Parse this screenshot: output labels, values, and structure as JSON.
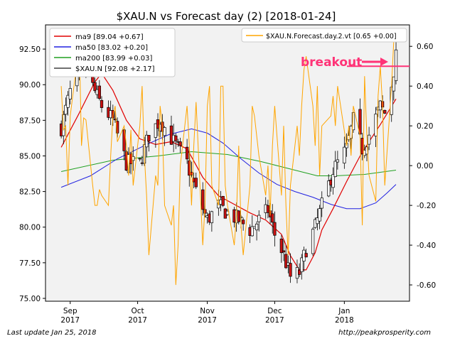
{
  "chart_data": {
    "type": "candlestick",
    "title": "$XAU.N vs Forecast day (2)  [2018-01-24]",
    "left_axis": {
      "ylim": [
        74.8,
        94.2
      ],
      "ticks": [
        75.0,
        77.5,
        80.0,
        82.5,
        85.0,
        87.5,
        90.0,
        92.5
      ],
      "tick_labels": [
        "75.00",
        "77.50",
        "80.00",
        "82.50",
        "85.00",
        "87.50",
        "90.00",
        "92.50"
      ]
    },
    "right_axis": {
      "ylim": [
        -0.682,
        0.708
      ],
      "ticks": [
        -0.6,
        -0.4,
        -0.2,
        0.0,
        0.2,
        0.4,
        0.6
      ],
      "tick_labels": [
        "-0.60",
        "-0.40",
        "-0.20",
        "0.00",
        "0.20",
        "0.40",
        "0.60"
      ]
    },
    "x_axis": {
      "start": "2017-08-21",
      "end": "2018-01-30",
      "ticks": [
        {
          "date": "2017-09-01",
          "month": "Sep",
          "year": "2017"
        },
        {
          "date": "2017-10-01",
          "month": "Oct",
          "year": "2017"
        },
        {
          "date": "2017-11-01",
          "month": "Nov",
          "year": "2017"
        },
        {
          "date": "2017-12-01",
          "month": "Dec",
          "year": "2017"
        },
        {
          "date": "2018-01-01",
          "month": "Jan",
          "year": "2018"
        }
      ]
    },
    "legend_left": [
      {
        "label": "ma9 [89.04 +0.67]",
        "color": "#e00000"
      },
      {
        "label": "ma50 [83.02 +0.20]",
        "color": "#2020e0"
      },
      {
        "label": "ma200 [83.99 +0.03]",
        "color": "#20a020"
      },
      {
        "label": "$XAU.N [92.08 +2.17]",
        "color": "#404040"
      }
    ],
    "legend_right": [
      {
        "label": "$XAU.N.Forecast.day.2.vt [0.65 +0.00]",
        "color": "#ffa500"
      }
    ],
    "annotation": {
      "text": "breakout",
      "color": "#ff3377",
      "level": 0.5
    },
    "ohlc_anchors": [
      {
        "date": "2017-08-28",
        "close": 87.0
      },
      {
        "date": "2017-09-01",
        "close": 89.5
      },
      {
        "date": "2017-09-08",
        "close": 91.0
      },
      {
        "date": "2017-09-12",
        "close": 89.5
      },
      {
        "date": "2017-09-15",
        "close": 88.5
      },
      {
        "date": "2017-09-20",
        "close": 87.5
      },
      {
        "date": "2017-09-26",
        "close": 84.5
      },
      {
        "date": "2017-10-02",
        "close": 84.5
      },
      {
        "date": "2017-10-06",
        "close": 86.5
      },
      {
        "date": "2017-10-11",
        "close": 87.5
      },
      {
        "date": "2017-10-17",
        "close": 86.0
      },
      {
        "date": "2017-10-23",
        "close": 84.5
      },
      {
        "date": "2017-10-27",
        "close": 82.5
      },
      {
        "date": "2017-11-01",
        "close": 80.5
      },
      {
        "date": "2017-11-06",
        "close": 81.5
      },
      {
        "date": "2017-11-10",
        "close": 81.0
      },
      {
        "date": "2017-11-15",
        "close": 80.5
      },
      {
        "date": "2017-11-20",
        "close": 79.8
      },
      {
        "date": "2017-11-24",
        "close": 80.5
      },
      {
        "date": "2017-11-28",
        "close": 81.2
      },
      {
        "date": "2017-12-01",
        "close": 79.5
      },
      {
        "date": "2017-12-05",
        "close": 78.0
      },
      {
        "date": "2017-12-08",
        "close": 76.5
      },
      {
        "date": "2017-12-12",
        "close": 76.8
      },
      {
        "date": "2017-12-15",
        "close": 78.5
      },
      {
        "date": "2017-12-19",
        "close": 80.0
      },
      {
        "date": "2017-12-22",
        "close": 81.5
      },
      {
        "date": "2017-12-27",
        "close": 84.0
      },
      {
        "date": "2018-01-02",
        "close": 85.5
      },
      {
        "date": "2018-01-05",
        "close": 87.5
      },
      {
        "date": "2018-01-09",
        "close": 85.5
      },
      {
        "date": "2018-01-12",
        "close": 86.5
      },
      {
        "date": "2018-01-17",
        "close": 88.5
      },
      {
        "date": "2018-01-19",
        "close": 88.0
      },
      {
        "date": "2018-01-22",
        "close": 90.0
      },
      {
        "date": "2018-01-24",
        "close": 92.0
      }
    ],
    "ma9": [
      [
        "2017-08-28",
        85.6
      ],
      [
        "2017-09-05",
        88.0
      ],
      [
        "2017-09-12",
        90.2
      ],
      [
        "2017-09-15",
        90.8
      ],
      [
        "2017-09-20",
        89.6
      ],
      [
        "2017-09-26",
        87.5
      ],
      [
        "2017-10-02",
        86.2
      ],
      [
        "2017-10-09",
        85.8
      ],
      [
        "2017-10-16",
        86.0
      ],
      [
        "2017-10-23",
        85.5
      ],
      [
        "2017-10-30",
        83.5
      ],
      [
        "2017-11-06",
        82.2
      ],
      [
        "2017-11-13",
        81.6
      ],
      [
        "2017-11-20",
        81.0
      ],
      [
        "2017-11-27",
        80.5
      ],
      [
        "2017-12-04",
        79.5
      ],
      [
        "2017-12-08",
        78.0
      ],
      [
        "2017-12-12",
        77.0
      ],
      [
        "2017-12-15",
        77.0
      ],
      [
        "2017-12-19",
        78.2
      ],
      [
        "2017-12-22",
        79.8
      ],
      [
        "2017-12-27",
        81.3
      ],
      [
        "2018-01-02",
        83.2
      ],
      [
        "2018-01-08",
        85.0
      ],
      [
        "2018-01-12",
        86.0
      ],
      [
        "2018-01-17",
        87.2
      ],
      [
        "2018-01-24",
        89.0
      ]
    ],
    "ma50": [
      [
        "2017-08-28",
        82.8
      ],
      [
        "2017-09-10",
        83.6
      ],
      [
        "2017-09-22",
        84.8
      ],
      [
        "2017-10-05",
        85.8
      ],
      [
        "2017-10-15",
        86.5
      ],
      [
        "2017-10-25",
        86.9
      ],
      [
        "2017-11-01",
        86.6
      ],
      [
        "2017-11-08",
        85.9
      ],
      [
        "2017-11-16",
        84.8
      ],
      [
        "2017-11-24",
        83.8
      ],
      [
        "2017-12-02",
        83.0
      ],
      [
        "2017-12-10",
        82.5
      ],
      [
        "2017-12-18",
        82.1
      ],
      [
        "2017-12-26",
        81.6
      ],
      [
        "2018-01-02",
        81.3
      ],
      [
        "2018-01-08",
        81.3
      ],
      [
        "2018-01-15",
        81.7
      ],
      [
        "2018-01-20",
        82.4
      ],
      [
        "2018-01-24",
        83.0
      ]
    ],
    "ma200": [
      [
        "2017-08-28",
        83.9
      ],
      [
        "2017-09-20",
        84.7
      ],
      [
        "2017-10-10",
        85.0
      ],
      [
        "2017-10-25",
        85.3
      ],
      [
        "2017-11-10",
        85.1
      ],
      [
        "2017-11-25",
        84.6
      ],
      [
        "2017-12-10",
        84.0
      ],
      [
        "2017-12-20",
        83.6
      ],
      [
        "2017-12-28",
        83.6
      ],
      [
        "2018-01-10",
        83.7
      ],
      [
        "2018-01-24",
        84.0
      ]
    ],
    "forecast": [
      [
        "2017-08-28",
        0.4
      ],
      [
        "2017-08-29",
        0.18
      ],
      [
        "2017-08-30",
        0.2
      ],
      [
        "2017-08-31",
        -0.1
      ],
      [
        "2017-09-01",
        0.25
      ],
      [
        "2017-09-04",
        0.52
      ],
      [
        "2017-09-05",
        0.65
      ],
      [
        "2017-09-06",
        0.1
      ],
      [
        "2017-09-07",
        0.24
      ],
      [
        "2017-09-08",
        0.23
      ],
      [
        "2017-09-11",
        -0.1
      ],
      [
        "2017-09-12",
        -0.2
      ],
      [
        "2017-09-13",
        -0.2
      ],
      [
        "2017-09-14",
        -0.12
      ],
      [
        "2017-09-15",
        -0.15
      ],
      [
        "2017-09-18",
        -0.2
      ],
      [
        "2017-09-19",
        0.05
      ],
      [
        "2017-09-20",
        0.25
      ],
      [
        "2017-09-21",
        0.3
      ],
      [
        "2017-09-22",
        0.12
      ],
      [
        "2017-09-25",
        0.2
      ],
      [
        "2017-09-26",
        0.1
      ],
      [
        "2017-09-27",
        -0.05
      ],
      [
        "2017-09-28",
        0.18
      ],
      [
        "2017-09-29",
        -0.1
      ],
      [
        "2017-10-02",
        0.2
      ],
      [
        "2017-10-03",
        0.4
      ],
      [
        "2017-10-04",
        0.05
      ],
      [
        "2017-10-05",
        -0.15
      ],
      [
        "2017-10-06",
        -0.45
      ],
      [
        "2017-10-09",
        -0.05
      ],
      [
        "2017-10-10",
        -0.1
      ],
      [
        "2017-10-11",
        0.3
      ],
      [
        "2017-10-12",
        0.2
      ],
      [
        "2017-10-13",
        -0.2
      ],
      [
        "2017-10-16",
        -0.3
      ],
      [
        "2017-10-17",
        -0.2
      ],
      [
        "2017-10-18",
        -0.6
      ],
      [
        "2017-10-19",
        -0.4
      ],
      [
        "2017-10-20",
        0.0
      ],
      [
        "2017-10-23",
        0.3
      ],
      [
        "2017-10-24",
        0.1
      ],
      [
        "2017-10-25",
        -0.2
      ],
      [
        "2017-10-26",
        0.1
      ],
      [
        "2017-10-27",
        0.32
      ],
      [
        "2017-10-30",
        -0.4
      ],
      [
        "2017-10-31",
        -0.2
      ],
      [
        "2017-11-01",
        0.3
      ],
      [
        "2017-11-02",
        0.4
      ],
      [
        "2017-11-03",
        -0.1
      ],
      [
        "2017-11-06",
        -0.2
      ],
      [
        "2017-11-07",
        0.4
      ],
      [
        "2017-11-08",
        0.4
      ],
      [
        "2017-11-09",
        -0.1
      ],
      [
        "2017-11-10",
        -0.2
      ],
      [
        "2017-11-13",
        -0.4
      ],
      [
        "2017-11-14",
        -0.25
      ],
      [
        "2017-11-15",
        0.1
      ],
      [
        "2017-11-16",
        -0.3
      ],
      [
        "2017-11-17",
        -0.45
      ],
      [
        "2017-11-20",
        -0.1
      ],
      [
        "2017-11-21",
        0.3
      ],
      [
        "2017-11-22",
        0.25
      ],
      [
        "2017-11-24",
        0.05
      ],
      [
        "2017-11-27",
        -0.15
      ],
      [
        "2017-11-28",
        0.0
      ],
      [
        "2017-11-29",
        -0.25
      ],
      [
        "2017-11-30",
        0.1
      ],
      [
        "2017-12-01",
        0.3
      ],
      [
        "2017-12-04",
        -0.15
      ],
      [
        "2017-12-05",
        0.2
      ],
      [
        "2017-12-06",
        -0.2
      ],
      [
        "2017-12-07",
        -0.45
      ],
      [
        "2017-12-08",
        -0.1
      ],
      [
        "2017-12-11",
        0.2
      ],
      [
        "2017-12-12",
        0.05
      ],
      [
        "2017-12-13",
        0.3
      ],
      [
        "2017-12-14",
        0.48
      ],
      [
        "2017-12-15",
        0.55
      ],
      [
        "2017-12-18",
        0.3
      ],
      [
        "2017-12-19",
        0.1
      ],
      [
        "2017-12-20",
        0.4
      ],
      [
        "2017-12-21",
        -0.05
      ],
      [
        "2017-12-22",
        0.2
      ],
      [
        "2017-12-26",
        0.25
      ],
      [
        "2017-12-27",
        0.35
      ],
      [
        "2017-12-28",
        0.2
      ],
      [
        "2017-12-29",
        0.4
      ],
      [
        "2018-01-02",
        0.1
      ],
      [
        "2018-01-03",
        0.2
      ],
      [
        "2018-01-04",
        0.05
      ],
      [
        "2018-01-05",
        0.3
      ],
      [
        "2018-01-08",
        0.15
      ],
      [
        "2018-01-09",
        -0.3
      ],
      [
        "2018-01-10",
        0.45
      ],
      [
        "2018-01-11",
        0.15
      ],
      [
        "2018-01-12",
        -0.05
      ],
      [
        "2018-01-15",
        -0.18
      ],
      [
        "2018-01-16",
        0.35
      ],
      [
        "2018-01-17",
        0.5
      ],
      [
        "2018-01-18",
        0.3
      ],
      [
        "2018-01-19",
        -0.1
      ],
      [
        "2018-01-22",
        0.4
      ],
      [
        "2018-01-23",
        0.63
      ],
      [
        "2018-01-24",
        0.65
      ]
    ]
  },
  "footer": {
    "left": "Last update Jan 25, 2018",
    "right": "http://peakprosperity.com"
  }
}
